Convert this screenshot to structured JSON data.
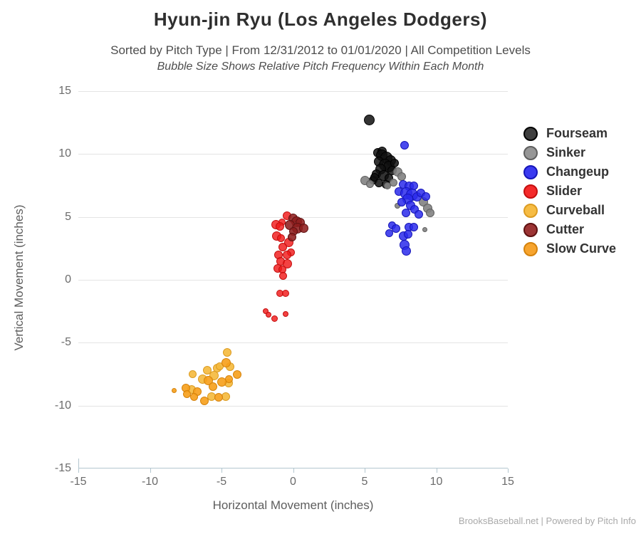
{
  "header": {
    "title": "Hyun-jin Ryu (Los Angeles Dodgers)",
    "subtitle": "Sorted by Pitch Type | From 12/31/2012 to 01/01/2020 | All Competition Levels",
    "note": "Bubble Size Shows Relative Pitch Frequency Within Each Month"
  },
  "footer": {
    "credit": "BrooksBaseball.net | Powered by Pitch Info"
  },
  "chart_data": {
    "type": "scatter",
    "title": "Hyun-jin Ryu (Los Angeles Dodgers)",
    "xlabel": "Horizontal Movement (inches)",
    "ylabel": "Vertical Movement (inches)",
    "xlim": [
      -15,
      15
    ],
    "ylim": [
      -15,
      15
    ],
    "xticks": [
      -15,
      -10,
      -5,
      0,
      5,
      10,
      15
    ],
    "yticks": [
      15,
      10,
      5,
      0,
      -5,
      -10,
      -15
    ],
    "grid": "horizontal",
    "legend_position": "right",
    "axis_color": "#b3c6cf",
    "grid_color": "#e4e4e4",
    "series": [
      {
        "name": "Fourseam",
        "legend_fill": "#3f3f3f",
        "legend_border": "#000000",
        "fill": "rgba(15,15,15,0.85)",
        "border": "#000000",
        "points": [
          [
            5.3,
            12.7,
            15
          ],
          [
            5.9,
            10.1,
            13
          ],
          [
            6.2,
            10.2,
            13
          ],
          [
            6.2,
            9.9,
            16
          ],
          [
            6.5,
            9.7,
            17
          ],
          [
            6.8,
            9.5,
            15
          ],
          [
            6.0,
            9.4,
            14
          ],
          [
            6.4,
            9.15,
            17
          ],
          [
            6.7,
            9.0,
            16
          ],
          [
            7.1,
            9.3,
            12
          ],
          [
            6.1,
            8.8,
            15
          ],
          [
            6.9,
            8.7,
            13
          ],
          [
            5.8,
            8.4,
            13
          ],
          [
            6.3,
            8.3,
            15
          ],
          [
            6.7,
            8.1,
            12
          ],
          [
            5.6,
            7.9,
            12
          ],
          [
            5.7,
            8.15,
            12
          ],
          [
            6.0,
            7.7,
            12
          ],
          [
            6.5,
            7.6,
            12
          ]
        ]
      },
      {
        "name": "Sinker",
        "legend_fill": "#969696",
        "legend_border": "#5f5f5f",
        "fill": "rgba(130,130,130,0.9)",
        "border": "#5f5f5f",
        "points": [
          [
            5.0,
            7.9,
            13
          ],
          [
            5.35,
            7.6,
            11
          ],
          [
            6.6,
            7.5,
            10
          ],
          [
            7.3,
            8.6,
            13
          ],
          [
            7.6,
            8.2,
            12
          ],
          [
            7.0,
            7.75,
            11
          ],
          [
            9.1,
            6.2,
            13
          ],
          [
            9.4,
            5.7,
            13
          ],
          [
            9.6,
            5.3,
            12
          ],
          [
            7.3,
            5.9,
            8
          ],
          [
            9.2,
            4.0,
            7
          ]
        ]
      },
      {
        "name": "Changeup",
        "legend_fill": "#3a3af0",
        "legend_border": "#1616b8",
        "fill": "rgba(42,42,235,0.85)",
        "border": "#1616b8",
        "points": [
          [
            7.8,
            10.7,
            12
          ],
          [
            7.7,
            7.6,
            12
          ],
          [
            8.1,
            7.45,
            13
          ],
          [
            8.45,
            7.5,
            12
          ],
          [
            7.4,
            7.0,
            12
          ],
          [
            7.9,
            6.9,
            17
          ],
          [
            8.3,
            6.75,
            17
          ],
          [
            8.0,
            6.4,
            15
          ],
          [
            8.65,
            6.6,
            13
          ],
          [
            8.95,
            6.9,
            12
          ],
          [
            9.3,
            6.6,
            12
          ],
          [
            7.6,
            6.15,
            12
          ],
          [
            8.2,
            5.9,
            13
          ],
          [
            8.5,
            5.6,
            12
          ],
          [
            7.9,
            5.3,
            12
          ],
          [
            8.8,
            5.2,
            12
          ],
          [
            6.9,
            4.35,
            11
          ],
          [
            7.2,
            4.1,
            12
          ],
          [
            8.1,
            4.2,
            12
          ],
          [
            8.45,
            4.2,
            12
          ],
          [
            7.7,
            3.5,
            13
          ],
          [
            8.05,
            3.6,
            12
          ],
          [
            7.8,
            2.8,
            14
          ],
          [
            7.9,
            2.3,
            13
          ],
          [
            6.7,
            3.7,
            11
          ]
        ]
      },
      {
        "name": "Slider",
        "legend_fill": "#f42a2a",
        "legend_border": "#c40f0f",
        "fill": "rgba(240,25,25,0.82)",
        "border": "#c40f0f",
        "points": [
          [
            -0.4,
            5.1,
            12
          ],
          [
            -0.75,
            4.6,
            10
          ],
          [
            -1.2,
            4.4,
            13
          ],
          [
            -0.9,
            4.25,
            12
          ],
          [
            -1.15,
            3.5,
            13
          ],
          [
            -0.85,
            3.3,
            11
          ],
          [
            -0.3,
            2.95,
            13
          ],
          [
            -0.7,
            2.6,
            12
          ],
          [
            -0.15,
            2.2,
            11
          ],
          [
            -1.0,
            2.0,
            12
          ],
          [
            -0.4,
            2.0,
            12
          ],
          [
            -0.85,
            1.45,
            12
          ],
          [
            -0.4,
            1.3,
            13
          ],
          [
            -1.05,
            0.9,
            12
          ],
          [
            -0.75,
            0.8,
            11
          ],
          [
            -0.7,
            0.3,
            11
          ],
          [
            -0.9,
            -1.05,
            10
          ],
          [
            -0.5,
            -1.1,
            10
          ],
          [
            -1.9,
            -2.5,
            8
          ],
          [
            -1.7,
            -2.8,
            8
          ],
          [
            -1.3,
            -3.1,
            9
          ],
          [
            -0.5,
            -2.7,
            8
          ]
        ]
      },
      {
        "name": "Curveball",
        "legend_fill": "#f6bc44",
        "legend_border": "#dc9c22",
        "fill": "rgba(245,185,60,0.9)",
        "border": "#dc9c22",
        "points": [
          [
            -4.6,
            -5.8,
            12
          ],
          [
            -6.0,
            -7.2,
            12
          ],
          [
            -5.3,
            -7.0,
            12
          ],
          [
            -5.1,
            -6.9,
            11
          ],
          [
            -4.4,
            -6.9,
            12
          ],
          [
            -7.0,
            -7.5,
            11
          ],
          [
            -6.3,
            -7.9,
            13
          ],
          [
            -5.5,
            -7.6,
            13
          ],
          [
            -4.5,
            -8.2,
            12
          ],
          [
            -7.1,
            -8.7,
            12
          ],
          [
            -5.7,
            -9.3,
            12
          ],
          [
            -4.7,
            -9.3,
            12
          ]
        ]
      },
      {
        "name": "Cutter",
        "legend_fill": "#9c3434",
        "legend_border": "#5f1212",
        "fill": "rgba(142,30,30,0.88)",
        "border": "#5f1212",
        "points": [
          [
            0.0,
            4.9,
            13
          ],
          [
            0.25,
            4.6,
            15
          ],
          [
            0.5,
            4.55,
            13
          ],
          [
            -0.2,
            4.35,
            14
          ],
          [
            0.3,
            4.1,
            15
          ],
          [
            0.75,
            4.1,
            13
          ],
          [
            0.0,
            3.85,
            12
          ],
          [
            -0.05,
            3.4,
            12
          ]
        ]
      },
      {
        "name": "Slow Curve",
        "legend_fill": "#f7a42e",
        "legend_border": "#d5830d",
        "fill": "rgba(246,158,26,0.9)",
        "border": "#d5830d",
        "points": [
          [
            -4.7,
            -6.6,
            13
          ],
          [
            -3.9,
            -7.5,
            12
          ],
          [
            -4.5,
            -7.9,
            11
          ],
          [
            -5.9,
            -8.0,
            13
          ],
          [
            -5.0,
            -8.1,
            13
          ],
          [
            -5.6,
            -8.5,
            12
          ],
          [
            -7.5,
            -8.6,
            12
          ],
          [
            -6.7,
            -8.9,
            12
          ],
          [
            -8.3,
            -8.8,
            7
          ],
          [
            -6.2,
            -9.6,
            12
          ],
          [
            -5.2,
            -9.35,
            12
          ],
          [
            -7.4,
            -9.1,
            11
          ],
          [
            -6.9,
            -9.3,
            11
          ]
        ]
      }
    ]
  }
}
